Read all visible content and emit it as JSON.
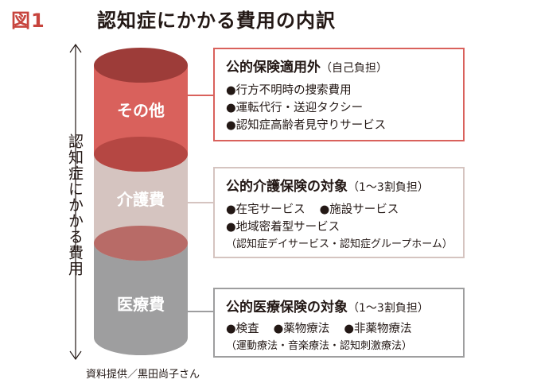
{
  "title": {
    "fig_label": "図1",
    "text": "認知症にかかる費用の内訳"
  },
  "vertical_label": "認知症にかかる費用",
  "segments": [
    {
      "label": "その他",
      "color": "#d9615c"
    },
    {
      "label": "介護費",
      "color": "#d5c4c0"
    },
    {
      "label": "医療費",
      "color": "#9e9e9f"
    }
  ],
  "boxes": [
    {
      "heading": "公的保険適用外",
      "note": "（自己負担）",
      "border_color": "#d9615c",
      "lines": [
        "●行方不明時の捜索費用",
        "●運転代行・送迎タクシー",
        "●認知症高齢者見守りサービス"
      ]
    },
    {
      "heading": "公的介護保険の対象",
      "note": "（1〜3割負担）",
      "border_color": "#d5c4c0",
      "items_row": [
        "●在宅サービス",
        "●施設サービス"
      ],
      "line": "●地域密着型サービス",
      "sub": "（認知症デイサービス・認知症グループホーム）"
    },
    {
      "heading": "公的医療保険の対象",
      "note": "（1〜3割負担）",
      "border_color": "#9e9e9f",
      "items_row": [
        "●検査",
        "●薬物療法",
        "●非薬物療法"
      ],
      "sub": "（運動療法・音楽療法・認知刺激療法）"
    }
  ],
  "credit": "資料提供／黒田尚子さん"
}
